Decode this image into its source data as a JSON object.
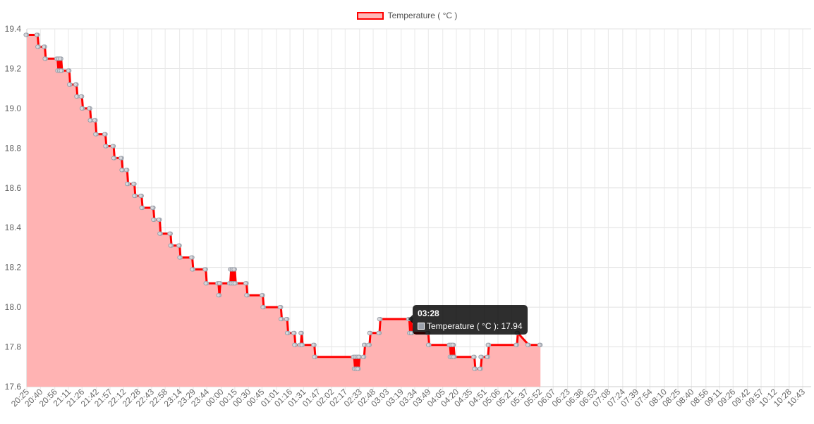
{
  "legend": {
    "label": "Temperature ( °C )"
  },
  "tooltip": {
    "title": "03:28",
    "label": "Temperature ( °C ): 17.94"
  },
  "chart_data": {
    "type": "area",
    "title": "",
    "xlabel": "",
    "ylabel": "",
    "ylim": [
      17.6,
      19.4
    ],
    "yticks": [
      17.6,
      17.8,
      18.0,
      18.2,
      18.4,
      18.6,
      18.8,
      19.0,
      19.2,
      19.4
    ],
    "grid": true,
    "legend_position": "top",
    "colors": {
      "line": "#ff0000",
      "fill": "#ffb3b3",
      "point": "#9aa0aa"
    },
    "x_labels": [
      "20:25",
      "20:40",
      "20:56",
      "21:11",
      "21:26",
      "21:42",
      "21:57",
      "22:12",
      "22:28",
      "22:43",
      "22:58",
      "23:14",
      "23:29",
      "23:44",
      "00:00",
      "00:15",
      "00:30",
      "00:45",
      "01:01",
      "01:16",
      "01:31",
      "01:47",
      "02:02",
      "02:17",
      "02:33",
      "02:48",
      "03:03",
      "03:19",
      "03:34",
      "03:49",
      "04:05",
      "04:20",
      "04:35",
      "04:51",
      "05:06",
      "05:21",
      "05:37",
      "05:52",
      "06:07",
      "06:23",
      "06:38",
      "06:53",
      "07:08",
      "07:24",
      "07:39",
      "07:54",
      "08:10",
      "08:25",
      "08:40",
      "08:56",
      "09:11",
      "09:26",
      "09:42",
      "09:57",
      "10:12",
      "10:28",
      "10:43"
    ],
    "series": [
      {
        "name": "Temperature ( °C )",
        "points": [
          [
            "20:25",
            19.37
          ],
          [
            "20:37",
            19.37
          ],
          [
            "20:38",
            19.31
          ],
          [
            "20:45",
            19.31
          ],
          [
            "20:46",
            19.25
          ],
          [
            "20:59",
            19.25
          ],
          [
            "21:00",
            19.19
          ],
          [
            "21:01",
            19.25
          ],
          [
            "21:02",
            19.19
          ],
          [
            "21:03",
            19.25
          ],
          [
            "21:04",
            19.19
          ],
          [
            "21:12",
            19.19
          ],
          [
            "21:13",
            19.12
          ],
          [
            "21:20",
            19.12
          ],
          [
            "21:21",
            19.06
          ],
          [
            "21:26",
            19.06
          ],
          [
            "21:27",
            19.0
          ],
          [
            "21:35",
            19.0
          ],
          [
            "21:36",
            18.94
          ],
          [
            "21:41",
            18.94
          ],
          [
            "21:42",
            18.87
          ],
          [
            "21:52",
            18.87
          ],
          [
            "21:53",
            18.81
          ],
          [
            "22:01",
            18.81
          ],
          [
            "22:02",
            18.75
          ],
          [
            "22:10",
            18.75
          ],
          [
            "22:11",
            18.69
          ],
          [
            "22:16",
            18.69
          ],
          [
            "22:17",
            18.62
          ],
          [
            "22:24",
            18.62
          ],
          [
            "22:25",
            18.56
          ],
          [
            "22:32",
            18.56
          ],
          [
            "22:33",
            18.5
          ],
          [
            "22:45",
            18.5
          ],
          [
            "22:46",
            18.44
          ],
          [
            "22:52",
            18.44
          ],
          [
            "22:53",
            18.37
          ],
          [
            "23:04",
            18.37
          ],
          [
            "23:05",
            18.31
          ],
          [
            "23:14",
            18.31
          ],
          [
            "23:15",
            18.25
          ],
          [
            "23:28",
            18.25
          ],
          [
            "23:29",
            18.19
          ],
          [
            "23:43",
            18.19
          ],
          [
            "23:44",
            18.12
          ],
          [
            "23:57",
            18.12
          ],
          [
            "23:58",
            18.06
          ],
          [
            "23:59",
            18.12
          ],
          [
            "00:10",
            18.12
          ],
          [
            "00:11",
            18.19
          ],
          [
            "00:12",
            18.12
          ],
          [
            "00:13",
            18.19
          ],
          [
            "00:14",
            18.12
          ],
          [
            "00:15",
            18.19
          ],
          [
            "00:16",
            18.12
          ],
          [
            "00:28",
            18.12
          ],
          [
            "00:29",
            18.06
          ],
          [
            "00:46",
            18.06
          ],
          [
            "00:47",
            18.0
          ],
          [
            "01:06",
            18.0
          ],
          [
            "01:07",
            17.94
          ],
          [
            "01:13",
            17.94
          ],
          [
            "01:14",
            17.87
          ],
          [
            "01:21",
            17.87
          ],
          [
            "01:22",
            17.81
          ],
          [
            "01:28",
            17.81
          ],
          [
            "01:29",
            17.87
          ],
          [
            "01:30",
            17.81
          ],
          [
            "01:43",
            17.81
          ],
          [
            "01:44",
            17.75
          ],
          [
            "02:27",
            17.75
          ],
          [
            "02:28",
            17.69
          ],
          [
            "02:29",
            17.75
          ],
          [
            "02:30",
            17.69
          ],
          [
            "02:31",
            17.75
          ],
          [
            "02:32",
            17.69
          ],
          [
            "02:33",
            17.75
          ],
          [
            "02:38",
            17.75
          ],
          [
            "02:39",
            17.81
          ],
          [
            "02:44",
            17.81
          ],
          [
            "02:45",
            17.87
          ],
          [
            "02:55",
            17.87
          ],
          [
            "02:56",
            17.94
          ],
          [
            "03:28",
            17.94
          ],
          [
            "03:29",
            17.87
          ],
          [
            "03:30",
            17.94
          ],
          [
            "03:31",
            17.87
          ],
          [
            "03:49",
            17.87
          ],
          [
            "03:50",
            17.81
          ],
          [
            "04:13",
            17.81
          ],
          [
            "04:14",
            17.75
          ],
          [
            "04:15",
            17.81
          ],
          [
            "04:16",
            17.75
          ],
          [
            "04:17",
            17.81
          ],
          [
            "04:18",
            17.75
          ],
          [
            "04:40",
            17.75
          ],
          [
            "04:41",
            17.69
          ],
          [
            "04:47",
            17.69
          ],
          [
            "04:48",
            17.75
          ],
          [
            "04:55",
            17.75
          ],
          [
            "04:56",
            17.81
          ],
          [
            "05:27",
            17.81
          ],
          [
            "05:28",
            17.87
          ],
          [
            "05:40",
            17.81
          ],
          [
            "05:53",
            17.81
          ]
        ]
      }
    ]
  }
}
